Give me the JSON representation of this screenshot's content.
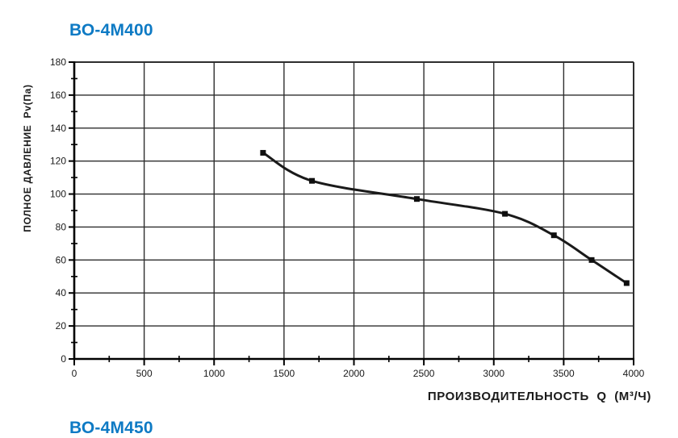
{
  "page": {
    "background_color": "#ffffff",
    "accent_color": "#0e7ac4",
    "next_chart_title_partial": "ВО-4М450"
  },
  "chart_data": {
    "type": "line",
    "title": "ВО-4М400",
    "xlabel": "ПРОИЗВОДИТЕЛЬНОСТЬ  Q  (М³/Ч)",
    "ylabel": "ПОЛНОЕ ДАВЛЕНИЕ  Pv(Па)",
    "xlim": [
      0,
      4000
    ],
    "ylim": [
      0,
      180
    ],
    "x_ticks": [
      0,
      500,
      1000,
      1500,
      2000,
      2500,
      3000,
      3500,
      4000
    ],
    "y_ticks": [
      0,
      20,
      40,
      60,
      80,
      100,
      120,
      140,
      160,
      180
    ],
    "x_minor_step": 250,
    "y_minor_step": 10,
    "grid": true,
    "legend_position": "none",
    "marker": "square",
    "line_color": "#1a1a1a",
    "grid_color": "#2e2e2e",
    "axis_color": "#000000",
    "series": [
      {
        "name": "ВО-4М400",
        "points": [
          [
            1350,
            125
          ],
          [
            1700,
            108
          ],
          [
            2450,
            97
          ],
          [
            3080,
            88
          ],
          [
            3430,
            75
          ],
          [
            3700,
            60
          ],
          [
            3950,
            46
          ]
        ]
      }
    ]
  }
}
